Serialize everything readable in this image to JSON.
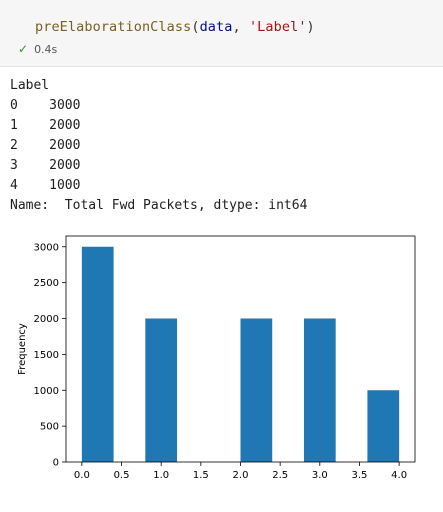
{
  "cell": {
    "code": {
      "function": "preElaborationClass",
      "open_paren": "(",
      "arg1": "data",
      "sep": ", ",
      "arg2": "'Label'",
      "close_paren": ")"
    },
    "status": {
      "icon": "check-icon",
      "time": "0.4s"
    }
  },
  "output": {
    "header": "Label",
    "rows": [
      {
        "index": "0",
        "value": "3000"
      },
      {
        "index": "1",
        "value": "2000"
      },
      {
        "index": "2",
        "value": "2000"
      },
      {
        "index": "3",
        "value": "2000"
      },
      {
        "index": "4",
        "value": "1000"
      }
    ],
    "footer": "Name:  Total Fwd Packets, dtype: int64"
  },
  "chart_data": {
    "type": "bar",
    "title": "",
    "xlabel": "",
    "ylabel": "Frequency",
    "bars": [
      {
        "x0": 0.0,
        "x1": 0.4,
        "value": 3000
      },
      {
        "x0": 0.8,
        "x1": 1.2,
        "value": 2000
      },
      {
        "x0": 2.0,
        "x1": 2.4,
        "value": 2000
      },
      {
        "x0": 2.8,
        "x1": 3.2,
        "value": 2000
      },
      {
        "x0": 3.6,
        "x1": 4.0,
        "value": 1000
      }
    ],
    "xlim": [
      -0.2,
      4.2
    ],
    "ylim": [
      0,
      3150
    ],
    "xticks": [
      "0.0",
      "0.5",
      "1.0",
      "1.5",
      "2.0",
      "2.5",
      "3.0",
      "3.5",
      "4.0"
    ],
    "yticks": [
      "0",
      "500",
      "1000",
      "1500",
      "2000",
      "2500",
      "3000"
    ],
    "bar_color": "#1f77b4",
    "grid": false
  }
}
